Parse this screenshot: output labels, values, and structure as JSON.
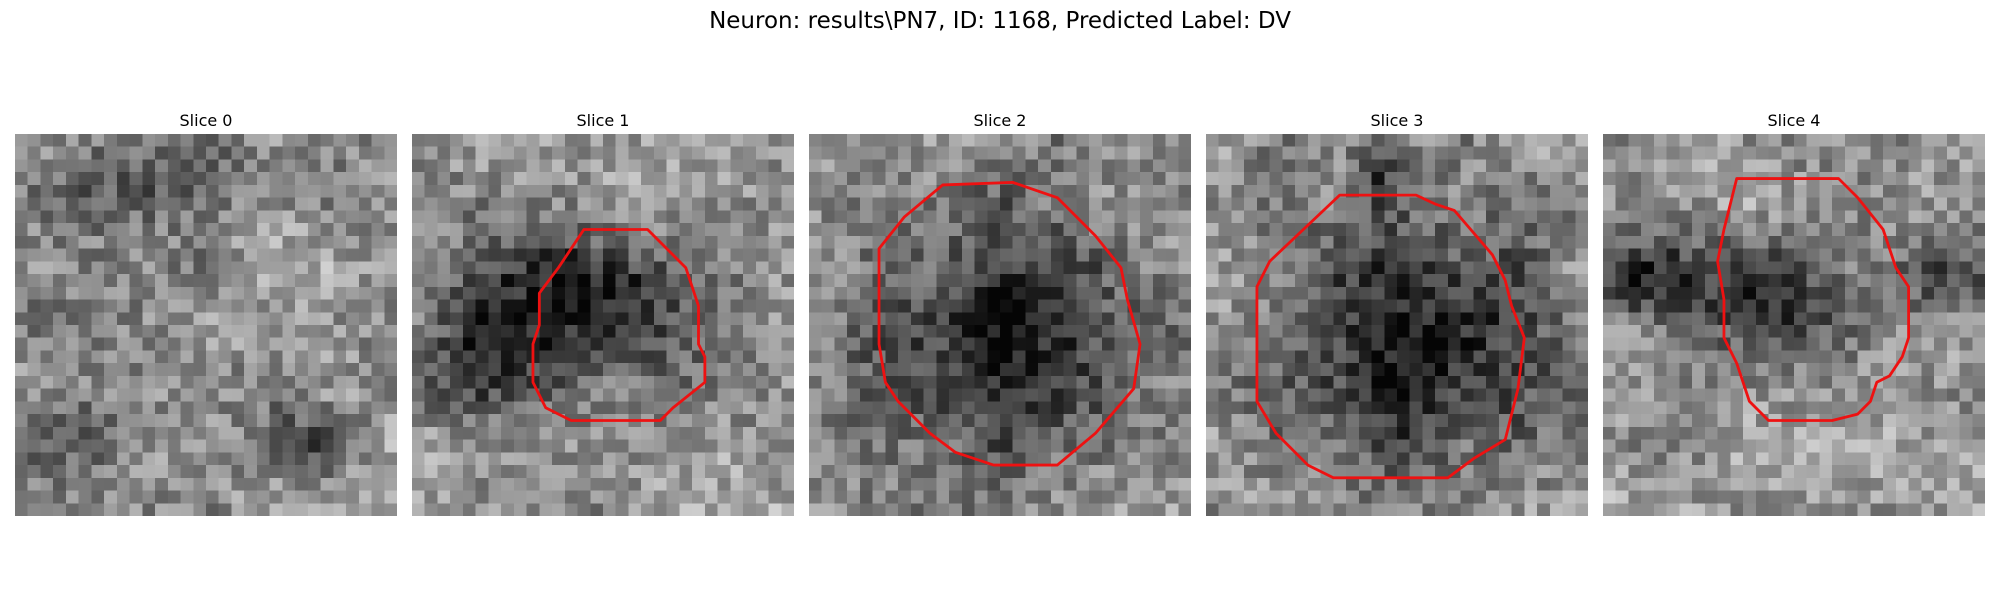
{
  "figure": {
    "title": "Neuron: results\\PN7, ID: 1168, Predicted Label: DV"
  },
  "panels": [
    {
      "title": "Slice 0",
      "darkBlobs": [
        [
          12,
          3,
          8,
          3,
          0.25
        ],
        [
          7,
          12,
          7,
          7,
          0.12
        ],
        [
          22,
          24,
          4,
          3,
          0.25
        ],
        [
          4,
          23,
          4,
          4,
          0.25
        ]
      ],
      "contour": []
    },
    {
      "title": "Slice 1",
      "darkBlobs": [
        [
          13,
          13,
          8,
          7,
          0.4
        ],
        [
          5,
          16,
          6,
          5,
          0.28
        ],
        [
          14,
          11,
          5,
          3,
          0.15
        ]
      ],
      "contour": [
        [
          13.5,
          7.5
        ],
        [
          18.5,
          7.5
        ],
        [
          21.5,
          10.5
        ],
        [
          22.5,
          13.5
        ],
        [
          22.5,
          16.5
        ],
        [
          23.0,
          17.5
        ],
        [
          23.0,
          19.5
        ],
        [
          20.5,
          21.5
        ],
        [
          19.5,
          22.5
        ],
        [
          12.5,
          22.5
        ],
        [
          10.5,
          21.5
        ],
        [
          9.5,
          19.5
        ],
        [
          9.5,
          16.5
        ],
        [
          10.0,
          15.0
        ],
        [
          10.0,
          12.5
        ],
        [
          11.5,
          10.5
        ]
      ]
    },
    {
      "title": "Slice 2",
      "darkBlobs": [
        [
          15,
          15,
          10,
          10,
          0.5
        ]
      ],
      "contour": [
        [
          10.5,
          4.0
        ],
        [
          16.0,
          3.8
        ],
        [
          19.5,
          5.0
        ],
        [
          22.5,
          8.0
        ],
        [
          24.5,
          10.5
        ],
        [
          25.0,
          13.0
        ],
        [
          26.0,
          16.5
        ],
        [
          25.5,
          20.0
        ],
        [
          22.5,
          23.5
        ],
        [
          19.5,
          26.0
        ],
        [
          14.5,
          26.0
        ],
        [
          11.5,
          25.0
        ],
        [
          9.5,
          23.5
        ],
        [
          7.0,
          21.0
        ],
        [
          6.0,
          19.5
        ],
        [
          5.5,
          16.5
        ],
        [
          5.5,
          9.0
        ],
        [
          7.5,
          6.5
        ]
      ]
    },
    {
      "title": "Slice 3",
      "darkBlobs": [
        [
          15,
          15,
          10,
          10,
          0.52
        ],
        [
          13,
          2,
          2,
          3,
          0.3
        ]
      ],
      "contour": [
        [
          10.5,
          4.8
        ],
        [
          16.5,
          4.8
        ],
        [
          18.0,
          5.5
        ],
        [
          19.5,
          6.0
        ],
        [
          22.5,
          9.5
        ],
        [
          23.5,
          11.5
        ],
        [
          24.0,
          13.5
        ],
        [
          25.0,
          16.0
        ],
        [
          24.5,
          20.0
        ],
        [
          23.5,
          24.0
        ],
        [
          21.0,
          25.5
        ],
        [
          19.0,
          27.0
        ],
        [
          10.0,
          27.0
        ],
        [
          8.0,
          26.0
        ],
        [
          5.5,
          23.5
        ],
        [
          4.0,
          21.0
        ],
        [
          4.0,
          12.0
        ],
        [
          5.0,
          10.0
        ]
      ]
    },
    {
      "title": "Slice 4",
      "darkBlobs": [
        [
          12,
          13,
          6,
          5,
          0.45
        ],
        [
          3,
          11,
          4,
          3,
          0.35
        ],
        [
          26,
          11,
          4,
          3,
          0.3
        ]
      ],
      "contour": [
        [
          10.5,
          3.5
        ],
        [
          18.5,
          3.5
        ],
        [
          20.0,
          5.0
        ],
        [
          22.0,
          7.5
        ],
        [
          23.0,
          10.5
        ],
        [
          24.0,
          12.0
        ],
        [
          24.0,
          16.0
        ],
        [
          23.5,
          17.5
        ],
        [
          22.5,
          19.0
        ],
        [
          21.5,
          19.5
        ],
        [
          21.0,
          21.0
        ],
        [
          20.0,
          22.0
        ],
        [
          18.0,
          22.5
        ],
        [
          13.0,
          22.5
        ],
        [
          11.5,
          21.0
        ],
        [
          10.5,
          18.0
        ],
        [
          9.5,
          16.0
        ],
        [
          9.5,
          13.0
        ],
        [
          9.0,
          10.0
        ],
        [
          9.5,
          7.5
        ]
      ]
    }
  ],
  "colors": {
    "contour": "#ee1111"
  }
}
